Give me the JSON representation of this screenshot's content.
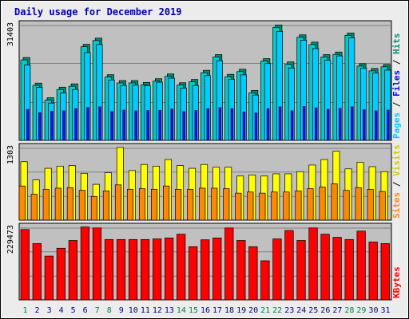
{
  "title": "Daily usage for December 2019",
  "colors": {
    "background": "#ececec",
    "plot_background": "#c0c0c0",
    "grid": "#808080",
    "title": "#0000aa",
    "hits_front": "#00cccc",
    "hits_back": "#008e6e",
    "files_front": "#00ccff",
    "files_back": "#008c8c",
    "pages_front": "#0000ff",
    "visits_front": "#ffff00",
    "visits_back": "#cccc00",
    "sites_front": "#ff8800",
    "sites_back": "#cc6600",
    "kbytes_front": "#ff0000",
    "kbytes_back": "#aa0000",
    "weekday_label": "#00008b",
    "weekend_label": "#00804d"
  },
  "chart_data": [
    {
      "type": "bar",
      "panel": "top",
      "y_max_label": "31403",
      "ylim": [
        0,
        31403
      ],
      "right_labels": [
        "Pages",
        "/",
        "Files",
        "/",
        "Hits"
      ],
      "categories": [
        "1",
        "2",
        "3",
        "4",
        "5",
        "6",
        "7",
        "8",
        "9",
        "10",
        "11",
        "12",
        "13",
        "14",
        "15",
        "16",
        "17",
        "18",
        "19",
        "20",
        "21",
        "22",
        "23",
        "24",
        "25",
        "26",
        "27",
        "28",
        "29",
        "30",
        "31"
      ],
      "series": [
        {
          "name": "Hits",
          "values": [
            22000,
            15000,
            11000,
            13900,
            14800,
            25600,
            27300,
            17300,
            15700,
            15700,
            15200,
            16200,
            17500,
            15100,
            16000,
            18500,
            22800,
            17400,
            18800,
            13000,
            21700,
            30900,
            20800,
            28200,
            26200,
            22800,
            23500,
            28700,
            20300,
            19000,
            20100
          ]
        },
        {
          "name": "Files",
          "values": [
            20600,
            14500,
            10200,
            13000,
            13900,
            24000,
            26200,
            16500,
            15000,
            15100,
            15000,
            15900,
            17000,
            14300,
            15000,
            17700,
            21800,
            16700,
            17900,
            12400,
            21000,
            29800,
            19800,
            27400,
            25100,
            21900,
            23100,
            28000,
            19700,
            18400,
            19200
          ]
        },
        {
          "name": "Pages",
          "values": [
            8500,
            7600,
            8000,
            8100,
            8700,
            9000,
            9200,
            7900,
            8300,
            8100,
            8200,
            8200,
            8600,
            7900,
            8200,
            8700,
            9000,
            8700,
            7800,
            7500,
            8700,
            9200,
            8100,
            9300,
            8900,
            8500,
            8800,
            9200,
            8400,
            8100,
            8300
          ]
        }
      ]
    },
    {
      "type": "bar",
      "panel": "middle",
      "y_max_label": "1303",
      "ylim": [
        0,
        1303
      ],
      "right_labels": [
        "Sites",
        "/",
        "Visits"
      ],
      "categories": [
        "1",
        "2",
        "3",
        "4",
        "5",
        "6",
        "7",
        "8",
        "9",
        "10",
        "11",
        "12",
        "13",
        "14",
        "15",
        "16",
        "17",
        "18",
        "19",
        "20",
        "21",
        "22",
        "23",
        "24",
        "25",
        "26",
        "27",
        "28",
        "29",
        "30",
        "31"
      ],
      "series": [
        {
          "name": "Visits",
          "values": [
            1060,
            730,
            940,
            980,
            990,
            850,
            650,
            860,
            1320,
            900,
            1010,
            980,
            1100,
            990,
            940,
            1010,
            960,
            960,
            800,
            820,
            800,
            840,
            840,
            880,
            1000,
            1100,
            1250,
            930,
            1050,
            970,
            880
          ]
        },
        {
          "name": "Sites",
          "values": [
            620,
            470,
            560,
            580,
            590,
            540,
            430,
            530,
            640,
            560,
            570,
            560,
            620,
            560,
            560,
            580,
            580,
            570,
            490,
            510,
            490,
            510,
            510,
            530,
            570,
            600,
            660,
            540,
            590,
            560,
            520
          ]
        }
      ]
    },
    {
      "type": "bar",
      "panel": "bottom",
      "y_max_label": "229473",
      "ylim": [
        0,
        229473
      ],
      "right_labels": [
        "KBytes"
      ],
      "categories": [
        "1",
        "2",
        "3",
        "4",
        "5",
        "6",
        "7",
        "8",
        "9",
        "10",
        "11",
        "12",
        "13",
        "14",
        "15",
        "16",
        "17",
        "18",
        "19",
        "20",
        "21",
        "22",
        "23",
        "24",
        "25",
        "26",
        "27",
        "28",
        "29",
        "30",
        "31"
      ],
      "series": [
        {
          "name": "KBytes",
          "values": [
            225000,
            180000,
            140000,
            165000,
            190000,
            233000,
            230000,
            193000,
            193000,
            193000,
            193000,
            195000,
            198000,
            210000,
            170000,
            192000,
            198000,
            230000,
            190000,
            170000,
            125000,
            195000,
            222000,
            190000,
            230000,
            210000,
            200000,
            193000,
            220000,
            185000,
            180000
          ]
        }
      ]
    }
  ],
  "x_labels": [
    {
      "label": "1",
      "weekend": true
    },
    {
      "label": "2",
      "weekend": false
    },
    {
      "label": "3",
      "weekend": false
    },
    {
      "label": "4",
      "weekend": false
    },
    {
      "label": "5",
      "weekend": false
    },
    {
      "label": "6",
      "weekend": false
    },
    {
      "label": "7",
      "weekend": true
    },
    {
      "label": "8",
      "weekend": true
    },
    {
      "label": "9",
      "weekend": false
    },
    {
      "label": "10",
      "weekend": false
    },
    {
      "label": "11",
      "weekend": false
    },
    {
      "label": "12",
      "weekend": false
    },
    {
      "label": "13",
      "weekend": false
    },
    {
      "label": "14",
      "weekend": true
    },
    {
      "label": "15",
      "weekend": true
    },
    {
      "label": "16",
      "weekend": false
    },
    {
      "label": "17",
      "weekend": false
    },
    {
      "label": "18",
      "weekend": false
    },
    {
      "label": "19",
      "weekend": false
    },
    {
      "label": "20",
      "weekend": false
    },
    {
      "label": "21",
      "weekend": true
    },
    {
      "label": "22",
      "weekend": true
    },
    {
      "label": "23",
      "weekend": false
    },
    {
      "label": "24",
      "weekend": false
    },
    {
      "label": "25",
      "weekend": false
    },
    {
      "label": "26",
      "weekend": false
    },
    {
      "label": "27",
      "weekend": false
    },
    {
      "label": "28",
      "weekend": true
    },
    {
      "label": "29",
      "weekend": true
    },
    {
      "label": "30",
      "weekend": false
    },
    {
      "label": "31",
      "weekend": false
    }
  ]
}
